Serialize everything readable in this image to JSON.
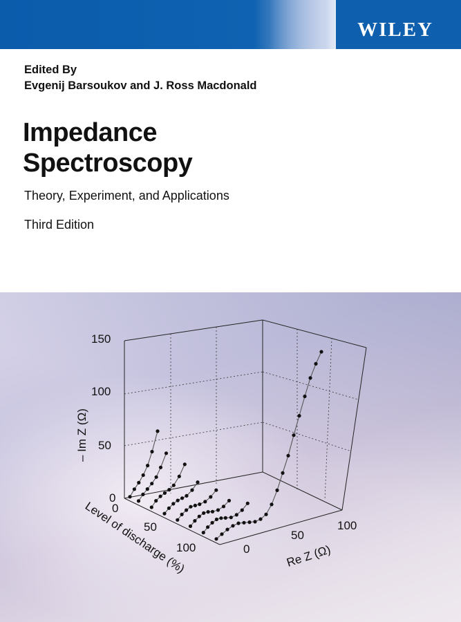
{
  "publisher": {
    "name": "WILEY"
  },
  "editors": {
    "label": "Edited By",
    "names": "Evgenij Barsoukov and J. Ross Macdonald"
  },
  "book": {
    "title_line1": "Impedance",
    "title_line2": "Spectroscopy",
    "subtitle": "Theory, Experiment, and Applications",
    "edition": "Third Edition"
  },
  "colors": {
    "wiley_blue": "#0e5fae",
    "background": "#ffffff"
  },
  "chart_data": {
    "type": "scatter",
    "title": "",
    "xlabel": "Re Z (Ω)",
    "ylabel": "Level of discharge (%)",
    "zlabel": "– Im Z (Ω)",
    "x_ticks": [
      "0",
      "50",
      "100"
    ],
    "y_ticks": [
      "0",
      "50",
      "100"
    ],
    "z_ticks": [
      "0",
      "50",
      "100",
      "150"
    ],
    "xlim": [
      0,
      110
    ],
    "ylim": [
      0,
      110
    ],
    "zlim": [
      0,
      150
    ],
    "grid": true,
    "series": [
      {
        "discharge": 0,
        "x": [
          5,
          10,
          15,
          20,
          25,
          30,
          35,
          40,
          45,
          50,
          55,
          60,
          65,
          70,
          75,
          80,
          85,
          90,
          95,
          100
        ],
        "z": [
          0,
          3,
          6,
          8,
          9,
          8,
          7,
          6,
          7,
          10,
          18,
          30,
          45,
          60,
          78,
          95,
          112,
          128,
          140,
          150
        ]
      },
      {
        "discharge": 15,
        "x": [
          5,
          9,
          13,
          17,
          21,
          25,
          30,
          35,
          40,
          45
        ],
        "z": [
          0,
          4,
          7,
          9,
          9,
          8,
          7,
          8,
          11,
          16
        ]
      },
      {
        "discharge": 30,
        "x": [
          5,
          9,
          13,
          17,
          21,
          25,
          30,
          35,
          40
        ],
        "z": [
          0,
          4,
          7,
          9,
          9,
          8,
          8,
          10,
          14
        ]
      },
      {
        "discharge": 45,
        "x": [
          5,
          9,
          13,
          17,
          21,
          25,
          30,
          35,
          40
        ],
        "z": [
          0,
          4,
          7,
          9,
          9,
          9,
          10,
          13,
          18
        ]
      },
      {
        "discharge": 60,
        "x": [
          5,
          9,
          13,
          17,
          21,
          25,
          30,
          35
        ],
        "z": [
          0,
          4,
          7,
          9,
          10,
          11,
          15,
          21
        ]
      },
      {
        "discharge": 75,
        "x": [
          5,
          9,
          13,
          17,
          21,
          25,
          30,
          35
        ],
        "z": [
          0,
          5,
          8,
          10,
          12,
          15,
          22,
          32
        ]
      },
      {
        "discharge": 90,
        "x": [
          5,
          9,
          13,
          17,
          21,
          25,
          30
        ],
        "z": [
          0,
          5,
          9,
          13,
          18,
          26,
          38
        ]
      },
      {
        "discharge": 100,
        "x": [
          5,
          9,
          13,
          17,
          21,
          25,
          30
        ],
        "z": [
          0,
          6,
          11,
          17,
          25,
          37,
          55
        ]
      }
    ]
  }
}
